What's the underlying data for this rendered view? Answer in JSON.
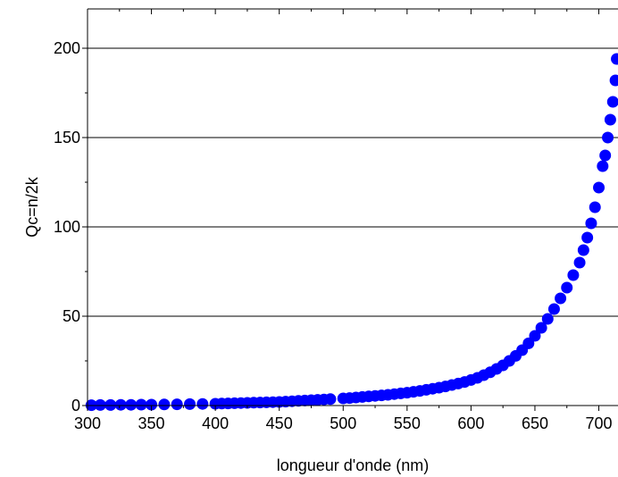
{
  "chart_data": {
    "type": "scatter",
    "xlabel": "longueur d'onde (nm)",
    "ylabel": "Qc=n/2k",
    "xlim": [
      300,
      715
    ],
    "ylim": [
      0,
      222
    ],
    "x_ticks": [
      300,
      350,
      400,
      450,
      500,
      550,
      600,
      650,
      700
    ],
    "y_ticks": [
      0,
      50,
      100,
      150,
      200
    ],
    "grid": "horizontal",
    "legend": "none",
    "marker_color": "#0000ff",
    "series": [
      {
        "points": [
          [
            303,
            0.2
          ],
          [
            310,
            0.3
          ],
          [
            318,
            0.3
          ],
          [
            326,
            0.4
          ],
          [
            334,
            0.4
          ],
          [
            342,
            0.5
          ],
          [
            350,
            0.5
          ],
          [
            360,
            0.6
          ],
          [
            370,
            0.7
          ],
          [
            380,
            0.8
          ],
          [
            390,
            0.9
          ],
          [
            400,
            1.0
          ],
          [
            405,
            1.1
          ],
          [
            410,
            1.2
          ],
          [
            415,
            1.3
          ],
          [
            420,
            1.4
          ],
          [
            425,
            1.5
          ],
          [
            430,
            1.6
          ],
          [
            435,
            1.7
          ],
          [
            440,
            1.8
          ],
          [
            445,
            1.9
          ],
          [
            450,
            2.0
          ],
          [
            455,
            2.2
          ],
          [
            460,
            2.4
          ],
          [
            465,
            2.6
          ],
          [
            470,
            2.8
          ],
          [
            475,
            3.0
          ],
          [
            480,
            3.2
          ],
          [
            485,
            3.4
          ],
          [
            490,
            3.6
          ],
          [
            500,
            4.0
          ],
          [
            505,
            4.2
          ],
          [
            510,
            4.5
          ],
          [
            515,
            4.8
          ],
          [
            520,
            5.1
          ],
          [
            525,
            5.4
          ],
          [
            530,
            5.7
          ],
          [
            535,
            6.0
          ],
          [
            540,
            6.4
          ],
          [
            545,
            6.8
          ],
          [
            550,
            7.2
          ],
          [
            555,
            7.7
          ],
          [
            560,
            8.2
          ],
          [
            565,
            8.8
          ],
          [
            570,
            9.4
          ],
          [
            575,
            10.0
          ],
          [
            580,
            10.7
          ],
          [
            585,
            11.5
          ],
          [
            590,
            12.3
          ],
          [
            595,
            13.2
          ],
          [
            600,
            14.3
          ],
          [
            605,
            15.5
          ],
          [
            610,
            17.0
          ],
          [
            615,
            18.6
          ],
          [
            620,
            20.5
          ],
          [
            625,
            22.5
          ],
          [
            630,
            25.0
          ],
          [
            635,
            27.8
          ],
          [
            640,
            31.0
          ],
          [
            645,
            34.8
          ],
          [
            650,
            39.0
          ],
          [
            655,
            43.5
          ],
          [
            660,
            48.5
          ],
          [
            665,
            54.0
          ],
          [
            670,
            60.0
          ],
          [
            675,
            66.0
          ],
          [
            680,
            73.0
          ],
          [
            685,
            80.0
          ],
          [
            688,
            87.0
          ],
          [
            691,
            94.0
          ],
          [
            694,
            102.0
          ],
          [
            697,
            111.0
          ],
          [
            700,
            122.0
          ],
          [
            703,
            134.0
          ],
          [
            705,
            140.0
          ],
          [
            707,
            150.0
          ],
          [
            709,
            160.0
          ],
          [
            711,
            170.0
          ],
          [
            713,
            182.0
          ],
          [
            714,
            194.0
          ]
        ]
      }
    ]
  }
}
